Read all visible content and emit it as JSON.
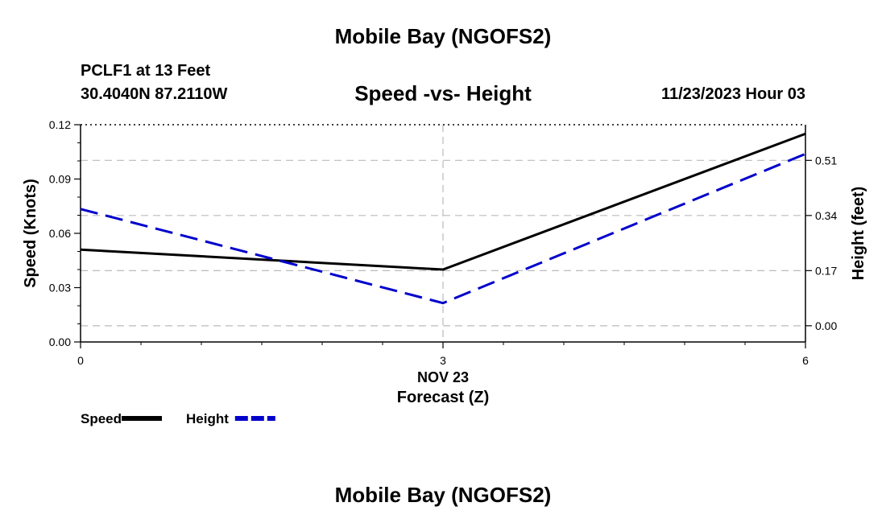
{
  "page": {
    "top_title": "Mobile Bay (NGOFS2)",
    "bottom_title": "Mobile Bay (NGOFS2)",
    "station": "PCLF1 at 13 Feet",
    "coords": "30.4040N  87.2110W",
    "datetime": "11/23/2023 Hour 03"
  },
  "chart_data": {
    "type": "line",
    "title": "Speed -vs- Height",
    "xlabel": "Forecast (Z)",
    "x_date_label": "NOV 23",
    "x": [
      0,
      3,
      6
    ],
    "xlim": [
      0,
      6
    ],
    "x_ticks": [
      0,
      3,
      6
    ],
    "ylabel": "Speed (Knots)",
    "ylim": [
      0,
      0.12
    ],
    "y_ticks": [
      "0.00",
      "0.03",
      "0.06",
      "0.09",
      "0.12"
    ],
    "y2label": "Height (feet)",
    "y2lim": [
      -0.05,
      0.62
    ],
    "y2_ticks": [
      "0.00",
      "0.17",
      "0.34",
      "0.51"
    ],
    "grid": true,
    "legend_position": "bottom-left",
    "series": [
      {
        "name": "Speed",
        "axis": "left",
        "style": "solid",
        "color": "#000000",
        "values": [
          0.051,
          0.04,
          0.115
        ]
      },
      {
        "name": "Height",
        "axis": "right",
        "style": "dashed",
        "color": "#0000cc",
        "values": [
          0.36,
          0.07,
          0.53
        ]
      }
    ]
  }
}
